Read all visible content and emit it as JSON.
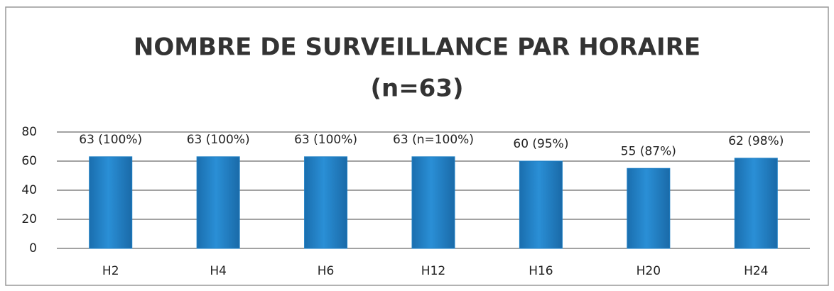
{
  "chart_data": {
    "type": "bar",
    "title": "NOMBRE DE SURVEILLANCE PAR HORAIRE",
    "subtitle": "(n=63)",
    "categories": [
      "H2",
      "H4",
      "H6",
      "H12",
      "H16",
      "H20",
      "H24"
    ],
    "values": [
      63,
      63,
      63,
      63,
      60,
      55,
      62
    ],
    "value_labels": [
      "63 (100%)",
      "63 (100%)",
      "63 (100%)",
      "63 (n=100%)",
      "60 (95%)",
      "55 (87%)",
      "62 (98%)"
    ],
    "color": "#1f7fc4",
    "ylim": [
      0,
      80
    ],
    "yticks": [
      0,
      20,
      40,
      60,
      80
    ],
    "grid": true
  }
}
